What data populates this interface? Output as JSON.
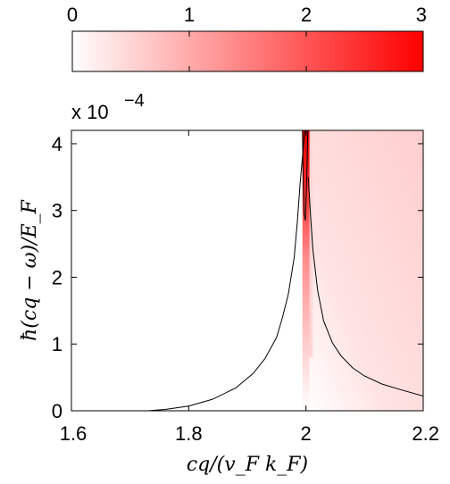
{
  "chart_data": {
    "type": "heatmap",
    "title": "",
    "xlabel": "cq/(v_F k_F)",
    "ylabel": "ħ(cq − ω)/E_F",
    "x_ticks": [
      "1.6",
      "1.8",
      "2",
      "2.2"
    ],
    "y_ticks": [
      "0",
      "1",
      "2",
      "3",
      "4"
    ],
    "xlim": [
      1.6,
      2.2
    ],
    "ylim": [
      0,
      4.2
    ],
    "y_scale_multiplier": "x 10",
    "y_scale_exponent": "−4",
    "colorbar": {
      "ticks": [
        "0",
        "1",
        "2",
        "3"
      ],
      "range": [
        0,
        3
      ],
      "color_low": "#ffffff",
      "color_high": "#ff0000",
      "placement": "top"
    },
    "contour_curves": [
      {
        "name": "",
        "x": [
          1.73,
          1.76,
          1.8,
          1.84,
          1.88,
          1.91,
          1.93,
          1.95,
          1.96,
          1.97,
          1.98,
          1.985,
          1.99,
          1.995,
          1.998
        ],
        "y": [
          0.0,
          0.02,
          0.07,
          0.17,
          0.34,
          0.56,
          0.78,
          1.1,
          1.4,
          1.75,
          2.3,
          2.8,
          3.4,
          3.9,
          4.2
        ]
      },
      {
        "name": "",
        "x": [
          2.004,
          2.008,
          2.012,
          2.02,
          2.03,
          2.045,
          2.06,
          2.08,
          2.1,
          2.13,
          2.16,
          2.2
        ],
        "y": [
          3.5,
          2.9,
          2.4,
          1.8,
          1.35,
          1.02,
          0.82,
          0.64,
          0.52,
          0.4,
          0.32,
          0.22
        ]
      },
      {
        "name": "",
        "x": [
          1.994,
          1.995,
          1.997,
          1.999,
          2.0,
          2.002,
          2.003
        ],
        "y": [
          4.2,
          3.6,
          2.95,
          2.85,
          3.1,
          3.7,
          4.2
        ]
      }
    ]
  }
}
